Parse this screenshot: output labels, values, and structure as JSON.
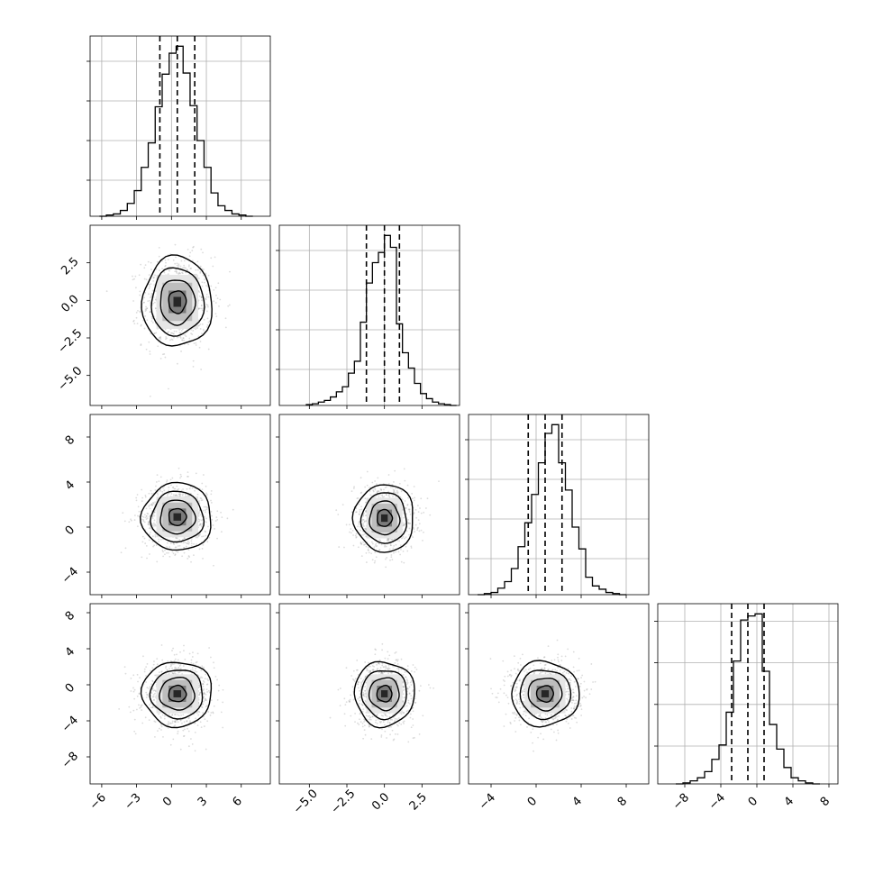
{
  "chart_data": {
    "type": "corner",
    "n_params": 4,
    "colors": {
      "line": "#000000",
      "grid": "#b0b0b0",
      "scatter": "#9a9a9a",
      "density_max": "#262626"
    },
    "grid": true,
    "params": [
      {
        "range": [
          -7,
          8.5
        ],
        "ticks": [
          -6,
          -3,
          0,
          3,
          6
        ],
        "tick_labels": [
          "−6",
          "−3",
          "0",
          "3",
          "6"
        ],
        "quantiles": [
          -1.0,
          0.5,
          2.0
        ],
        "hist": {
          "edges": [
            -6.2,
            -5.6,
            -5.0,
            -4.4,
            -3.8,
            -3.2,
            -2.6,
            -2.0,
            -1.4,
            -0.8,
            -0.2,
            0.4,
            1.0,
            1.6,
            2.2,
            2.8,
            3.4,
            4.0,
            4.6,
            5.2,
            5.8,
            6.4,
            7.0
          ],
          "counts": [
            0,
            1,
            2,
            5,
            11,
            22,
            42,
            63,
            94,
            122,
            140,
            146,
            123,
            95,
            65,
            42,
            20,
            9,
            5,
            2,
            1,
            0
          ]
        }
      },
      {
        "range": [
          -7,
          5
        ],
        "ticks": [
          -5.0,
          -2.5,
          0.0,
          2.5
        ],
        "tick_labels": [
          "−5.0",
          "−2.5",
          "0.0",
          "2.5"
        ],
        "quantiles": [
          -1.2,
          0.0,
          1.0
        ],
        "hist": {
          "edges": [
            -5.2,
            -4.8,
            -4.4,
            -4.0,
            -3.6,
            -3.2,
            -2.8,
            -2.4,
            -2.0,
            -1.6,
            -1.2,
            -0.8,
            -0.4,
            0.0,
            0.4,
            0.8,
            1.2,
            1.6,
            2.0,
            2.4,
            2.8,
            3.2,
            3.6,
            4.0,
            4.4,
            4.8
          ],
          "counts": [
            1,
            2,
            4,
            6,
            10,
            16,
            22,
            38,
            52,
            98,
            144,
            168,
            180,
            200,
            186,
            96,
            62,
            44,
            26,
            14,
            8,
            4,
            2,
            1,
            0
          ]
        }
      },
      {
        "range": [
          -6,
          10
        ],
        "ticks": [
          -4,
          0,
          4,
          8
        ],
        "tick_labels": [
          "−4",
          "0",
          "4",
          "8"
        ],
        "quantiles": [
          -0.7,
          0.8,
          2.3
        ],
        "hist": {
          "edges": [
            -5.2,
            -4.6,
            -4.0,
            -3.4,
            -2.8,
            -2.2,
            -1.6,
            -1.0,
            -0.4,
            0.2,
            0.8,
            1.4,
            2.0,
            2.6,
            3.2,
            3.8,
            4.4,
            5.0,
            5.6,
            6.2,
            6.8,
            7.4,
            8.0
          ],
          "counts": [
            0,
            1,
            2,
            6,
            12,
            24,
            44,
            66,
            92,
            121,
            148,
            156,
            121,
            96,
            62,
            42,
            16,
            8,
            5,
            2,
            1,
            0
          ]
        }
      },
      {
        "range": [
          -11,
          9
        ],
        "ticks": [
          -8,
          -4,
          0,
          4,
          8
        ],
        "tick_labels": [
          "−8",
          "−4",
          "0",
          "4",
          "8"
        ],
        "quantiles": [
          -2.8,
          -1.0,
          0.8
        ],
        "hist": {
          "edges": [
            -9.0,
            -8.2,
            -7.4,
            -6.6,
            -5.8,
            -5.0,
            -4.2,
            -3.4,
            -2.6,
            -1.8,
            -1.0,
            -0.2,
            0.6,
            1.4,
            2.2,
            3.0,
            3.8,
            4.6,
            5.4,
            6.2,
            7.0
          ],
          "counts": [
            0,
            1,
            3,
            6,
            12,
            24,
            38,
            70,
            120,
            160,
            164,
            166,
            110,
            58,
            34,
            16,
            6,
            3,
            1,
            0
          ]
        }
      }
    ],
    "y_ticks_rows": [
      null,
      {
        "ticks": [
          2.5,
          0.0,
          -2.5,
          -5.0
        ],
        "tick_labels": [
          "2.5",
          "0.0",
          "−2.5",
          "−5.0"
        ]
      },
      {
        "ticks": [
          8,
          4,
          0,
          -4
        ],
        "tick_labels": [
          "8",
          "4",
          "0",
          "−4"
        ]
      },
      {
        "ticks": [
          8,
          4,
          0,
          -4,
          -8
        ],
        "tick_labels": [
          "8",
          "4",
          "0",
          "−4",
          "−8"
        ]
      }
    ],
    "pairs": [
      {
        "row": 1,
        "col": 0,
        "center": [
          0.5,
          -0.1
        ],
        "sigma": [
          1.5,
          1.5
        ]
      },
      {
        "row": 2,
        "col": 0,
        "center": [
          0.5,
          0.9
        ],
        "sigma": [
          1.5,
          1.5
        ]
      },
      {
        "row": 2,
        "col": 1,
        "center": [
          0.0,
          0.8
        ],
        "sigma": [
          1.0,
          1.5
        ]
      },
      {
        "row": 3,
        "col": 0,
        "center": [
          0.5,
          -1.0
        ],
        "sigma": [
          1.5,
          1.8
        ]
      },
      {
        "row": 3,
        "col": 1,
        "center": [
          0.0,
          -1.0
        ],
        "sigma": [
          1.0,
          1.8
        ]
      },
      {
        "row": 3,
        "col": 2,
        "center": [
          0.8,
          -1.0
        ],
        "sigma": [
          1.5,
          1.8
        ]
      }
    ]
  }
}
